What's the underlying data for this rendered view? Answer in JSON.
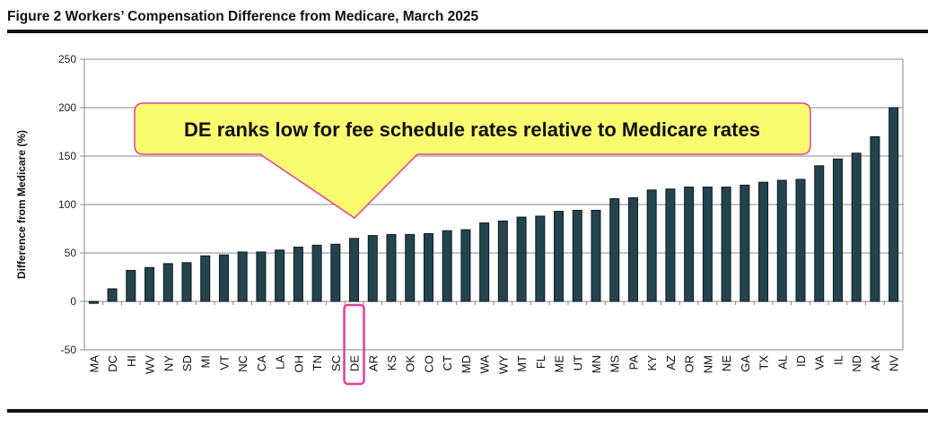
{
  "chart_data": {
    "type": "bar",
    "title": "Figure 2  Workers’ Compensation Difference from Medicare, March 2025",
    "xlabel": "",
    "ylabel": "Difference from Medicare (%)",
    "ylim": [
      -50,
      250
    ],
    "yticks": [
      "250",
      "200",
      "150",
      "100",
      "50",
      "0",
      "-50"
    ],
    "grid": true,
    "categories": [
      "MA",
      "DC",
      "HI",
      "WV",
      "NY",
      "SD",
      "MI",
      "VT",
      "NC",
      "CA",
      "LA",
      "OH",
      "TN",
      "SC",
      "DE",
      "AR",
      "KS",
      "OK",
      "CO",
      "CT",
      "MD",
      "WA",
      "WY",
      "MT",
      "FL",
      "ME",
      "UT",
      "MN",
      "MS",
      "PA",
      "KY",
      "AZ",
      "OR",
      "NM",
      "NE",
      "GA",
      "TX",
      "AL",
      "ID",
      "VA",
      "IL",
      "ND",
      "AK",
      "NV"
    ],
    "values": [
      -2,
      13,
      32,
      35,
      39,
      40,
      47,
      48,
      51,
      51,
      53,
      56,
      58,
      59,
      65,
      68,
      69,
      69,
      70,
      73,
      74,
      81,
      83,
      87,
      88,
      93,
      94,
      94,
      106,
      107,
      115,
      116,
      118,
      118,
      118,
      120,
      123,
      125,
      126,
      140,
      147,
      153,
      170,
      200
    ],
    "highlight": "DE",
    "annotation": "DE ranks low for fee schedule rates relative to Medicare rates",
    "colors": {
      "bar": "#23434f",
      "callout_fill": "#f9fc6f",
      "callout_border": "#e0409a",
      "highlight": "#e0409a"
    }
  }
}
